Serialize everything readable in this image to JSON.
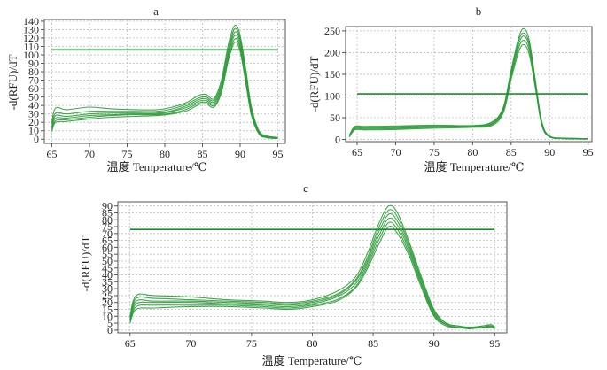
{
  "figure": {
    "background": "#ffffff",
    "curve_color": "#2e9b3a",
    "threshold_color": "#1f8a2a",
    "grid_color": "#bdbdbd"
  },
  "chart_data": [
    {
      "panel": "a",
      "type": "line",
      "xlabel": "温度 Temperature/℃",
      "ylabel": "-d(RFU)/dT",
      "xlim": [
        64,
        96
      ],
      "ylim": [
        -5,
        142
      ],
      "xticks": [
        65,
        70,
        75,
        80,
        85,
        90,
        95
      ],
      "yticks": [
        0,
        10,
        20,
        30,
        40,
        50,
        60,
        70,
        80,
        90,
        100,
        110,
        120,
        130,
        140
      ],
      "grid": true,
      "threshold": 106,
      "series": [
        {
          "x": [
            65,
            65.5,
            67,
            70,
            73,
            76,
            79,
            81,
            83,
            84.5,
            85.5,
            86.5,
            87.5,
            88.5,
            89.3,
            90,
            90.8,
            91.5,
            92.5,
            93.5,
            95
          ],
          "y": [
            20,
            37,
            35,
            38,
            36,
            35,
            35,
            38,
            44,
            52,
            53,
            48,
            70,
            115,
            135,
            123,
            80,
            38,
            10,
            4,
            2
          ]
        },
        {
          "x": [
            65,
            65.5,
            67,
            70,
            73,
            76,
            79,
            81,
            83,
            84.5,
            85.5,
            86.5,
            87.5,
            88.5,
            89.3,
            90,
            90.8,
            91.5,
            92.5,
            93.5,
            95
          ],
          "y": [
            18,
            31,
            30,
            33,
            33,
            33,
            33,
            36,
            42,
            49,
            50,
            46,
            66,
            110,
            131,
            119,
            76,
            36,
            9,
            3,
            2
          ]
        },
        {
          "x": [
            65,
            65.5,
            67,
            70,
            73,
            76,
            79,
            81,
            83,
            84.5,
            85.5,
            86.5,
            87.5,
            88.5,
            89.3,
            90,
            90.8,
            91.5,
            92.5,
            93.5,
            95
          ],
          "y": [
            15,
            28,
            27,
            30,
            31,
            31,
            31,
            34,
            40,
            47,
            48,
            44,
            63,
            106,
            127,
            116,
            73,
            34,
            8,
            3,
            1
          ]
        },
        {
          "x": [
            65,
            65.5,
            67,
            70,
            73,
            76,
            79,
            81,
            83,
            84.5,
            85.5,
            86.5,
            87.5,
            88.5,
            89.3,
            90,
            90.8,
            91.5,
            92.5,
            93.5,
            95
          ],
          "y": [
            13,
            25,
            25,
            28,
            29,
            30,
            30,
            33,
            38,
            45,
            46,
            42,
            60,
            103,
            123,
            112,
            70,
            32,
            8,
            2,
            1
          ]
        },
        {
          "x": [
            65,
            65.5,
            67,
            70,
            73,
            76,
            79,
            81,
            83,
            84.5,
            85.5,
            86.5,
            87.5,
            88.5,
            89.3,
            90,
            90.8,
            91.5,
            92.5,
            93.5,
            95
          ],
          "y": [
            11,
            22,
            23,
            26,
            28,
            29,
            29,
            31,
            36,
            43,
            44,
            40,
            57,
            99,
            119,
            108,
            67,
            30,
            7,
            2,
            1
          ]
        },
        {
          "x": [
            65,
            65.5,
            67,
            70,
            73,
            76,
            79,
            81,
            83,
            84.5,
            85.5,
            86.5,
            87.5,
            88.5,
            89.3,
            90,
            90.8,
            91.5,
            92.5,
            93.5,
            95
          ],
          "y": [
            9,
            20,
            21,
            24,
            26,
            27,
            28,
            30,
            34,
            41,
            42,
            38,
            55,
            96,
            115,
            104,
            64,
            28,
            6,
            2,
            1
          ]
        }
      ]
    },
    {
      "panel": "b",
      "type": "line",
      "xlabel": "温度 Temperature/℃",
      "ylabel": "-d(RFU)/dT",
      "xlim": [
        63.5,
        95.5
      ],
      "ylim": [
        -5,
        260
      ],
      "xticks": [
        65,
        70,
        75,
        80,
        85,
        90,
        95
      ],
      "yticks": [
        0,
        50,
        100,
        150,
        200,
        250
      ],
      "grid": true,
      "threshold": 105,
      "series": [
        {
          "x": [
            64,
            64.7,
            66,
            70,
            75,
            80,
            82.5,
            84,
            85,
            86,
            86.7,
            87.4,
            88.2,
            89,
            90,
            92,
            95
          ],
          "y": [
            10,
            30,
            30,
            31,
            33,
            32,
            40,
            75,
            160,
            235,
            255,
            225,
            130,
            40,
            8,
            3,
            2
          ]
        },
        {
          "x": [
            64,
            64.7,
            66,
            70,
            75,
            80,
            82.5,
            84,
            85,
            86,
            86.7,
            87.4,
            88.2,
            89,
            90,
            92,
            95
          ],
          "y": [
            9,
            28,
            28,
            29,
            31,
            31,
            38,
            72,
            155,
            228,
            245,
            217,
            126,
            38,
            7,
            3,
            2
          ]
        },
        {
          "x": [
            64,
            64.7,
            66,
            70,
            75,
            80,
            82.5,
            84,
            85,
            86,
            86.7,
            87.4,
            88.2,
            89,
            90,
            92,
            95
          ],
          "y": [
            8,
            26,
            26,
            27,
            29,
            30,
            36,
            69,
            150,
            220,
            238,
            210,
            122,
            36,
            7,
            3,
            2
          ]
        },
        {
          "x": [
            64,
            64.7,
            66,
            70,
            75,
            80,
            82.5,
            84,
            85,
            86,
            86.7,
            87.4,
            88.2,
            89,
            90,
            92,
            95
          ],
          "y": [
            7,
            24,
            24,
            25,
            28,
            29,
            34,
            66,
            145,
            212,
            228,
            202,
            118,
            34,
            6,
            2,
            1
          ]
        },
        {
          "x": [
            64,
            64.7,
            66,
            70,
            75,
            80,
            82.5,
            84,
            85,
            86,
            86.7,
            87.4,
            88.2,
            89,
            90,
            92,
            95
          ],
          "y": [
            6,
            22,
            22,
            23,
            26,
            28,
            32,
            62,
            138,
            203,
            218,
            193,
            113,
            32,
            6,
            2,
            1
          ]
        }
      ]
    },
    {
      "panel": "c",
      "type": "line",
      "xlabel": "温度 Temperature/℃",
      "ylabel": "-d(RFU)/dT",
      "xlim": [
        64,
        96
      ],
      "ylim": [
        -2,
        93
      ],
      "xticks": [
        65,
        70,
        75,
        80,
        85,
        90,
        95
      ],
      "yticks": [
        0,
        5,
        10,
        15,
        20,
        25,
        30,
        35,
        40,
        45,
        50,
        55,
        60,
        65,
        70,
        75,
        80,
        85,
        90
      ],
      "grid": true,
      "threshold": 73,
      "series": [
        {
          "x": [
            65,
            65.5,
            67,
            70,
            73,
            76,
            78,
            80,
            82,
            83.5,
            84.5,
            85.5,
            86.3,
            87,
            88,
            89,
            90,
            91,
            92,
            93,
            94,
            94.7,
            95
          ],
          "y": [
            10,
            25,
            25,
            24,
            22,
            21,
            20,
            22,
            28,
            38,
            55,
            78,
            90,
            85,
            63,
            38,
            15,
            5,
            3,
            2,
            3,
            4,
            2
          ]
        },
        {
          "x": [
            65,
            65.5,
            67,
            70,
            73,
            76,
            78,
            80,
            82,
            83.5,
            84.5,
            85.5,
            86.3,
            87,
            88,
            89,
            90,
            91,
            92,
            93,
            94,
            94.7,
            95
          ],
          "y": [
            9,
            23,
            23,
            22,
            21,
            20,
            19,
            21,
            26,
            36,
            52,
            75,
            87,
            82,
            61,
            36,
            14,
            5,
            3,
            2,
            3,
            3,
            2
          ]
        },
        {
          "x": [
            65,
            65.5,
            67,
            70,
            73,
            76,
            78,
            80,
            82,
            83.5,
            84.5,
            85.5,
            86.3,
            87,
            88,
            89,
            90,
            91,
            92,
            93,
            94,
            94.7,
            95
          ],
          "y": [
            8,
            21,
            21,
            21,
            20,
            19,
            18,
            20,
            25,
            35,
            50,
            72,
            84,
            79,
            59,
            35,
            13,
            4,
            2,
            2,
            2,
            3,
            2
          ]
        },
        {
          "x": [
            65,
            65.5,
            67,
            70,
            73,
            76,
            78,
            80,
            82,
            83.5,
            84.5,
            85.5,
            86.3,
            87,
            88,
            89,
            90,
            91,
            92,
            93,
            94,
            94.7,
            95
          ],
          "y": [
            7,
            19,
            20,
            20,
            19,
            18,
            17,
            19,
            24,
            33,
            48,
            69,
            81,
            76,
            57,
            33,
            12,
            4,
            2,
            2,
            2,
            3,
            1
          ]
        },
        {
          "x": [
            65,
            65.5,
            67,
            70,
            73,
            76,
            78,
            80,
            82,
            83.5,
            84.5,
            85.5,
            86.3,
            87,
            88,
            89,
            90,
            91,
            92,
            93,
            94,
            94.7,
            95
          ],
          "y": [
            6,
            17,
            18,
            18,
            18,
            17,
            16,
            18,
            22,
            31,
            46,
            66,
            78,
            73,
            55,
            32,
            11,
            4,
            2,
            1,
            2,
            2,
            1
          ]
        },
        {
          "x": [
            65,
            65.5,
            67,
            70,
            73,
            76,
            78,
            80,
            82,
            83.5,
            84.5,
            85.5,
            86.3,
            87,
            88,
            89,
            90,
            91,
            92,
            93,
            94,
            94.7,
            95
          ],
          "y": [
            5,
            15,
            16,
            17,
            17,
            16,
            15,
            17,
            21,
            30,
            44,
            63,
            75,
            70,
            53,
            30,
            10,
            3,
            2,
            1,
            2,
            2,
            1
          ]
        }
      ]
    }
  ]
}
